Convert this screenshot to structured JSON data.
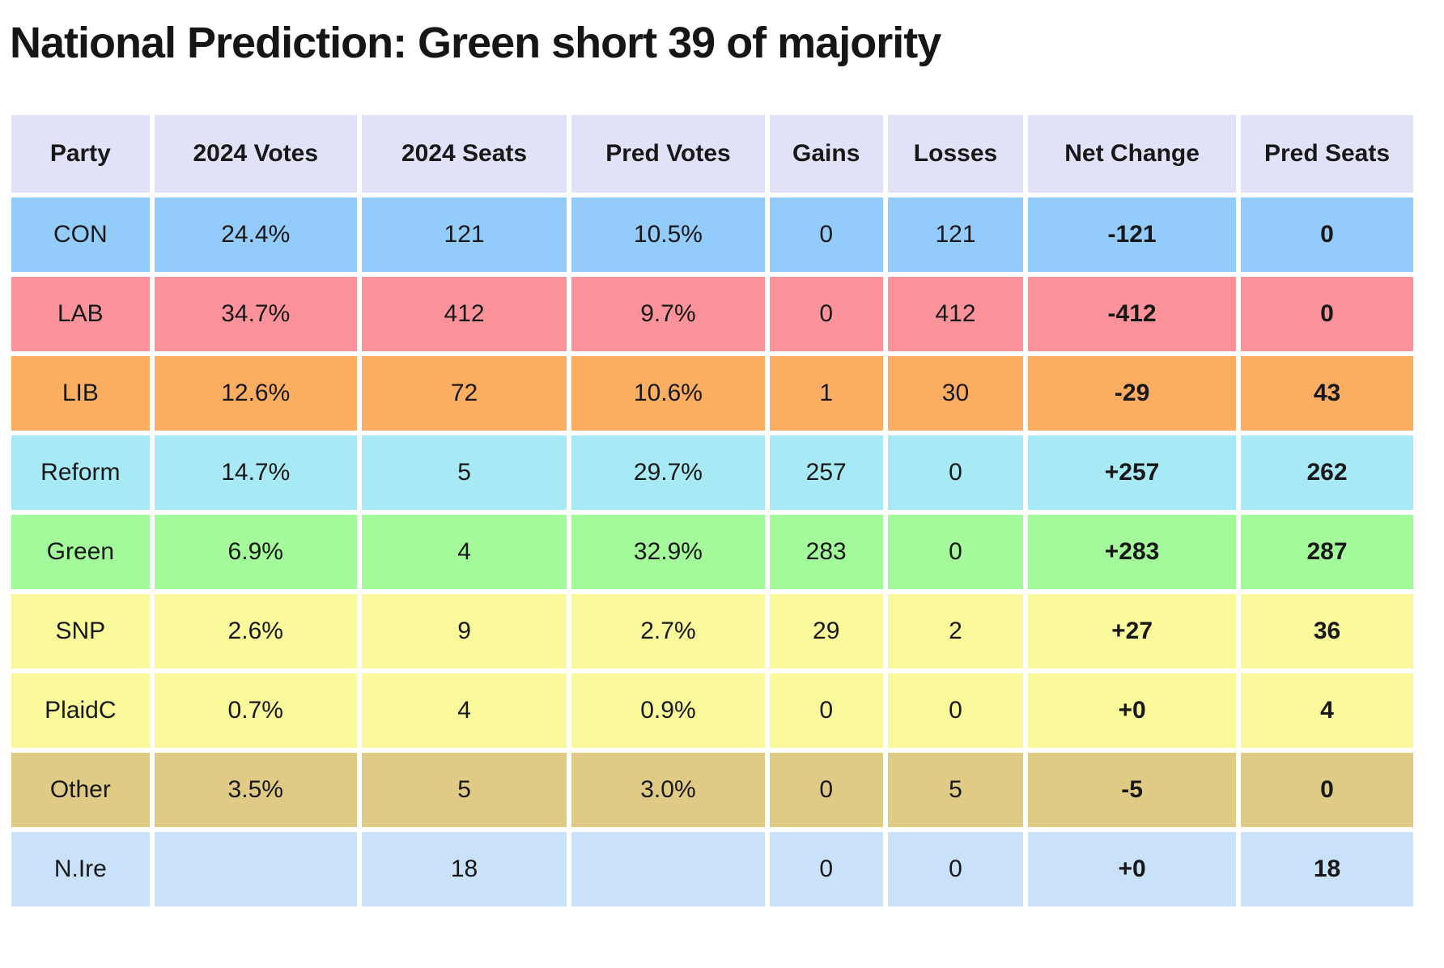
{
  "page": {
    "title": "National Prediction: Green short 39 of majority"
  },
  "colors": {
    "page_bg": "#ffffff",
    "header_bg": "#e1e1f8",
    "text": "#181818",
    "row_con": "#93cbfa",
    "row_lab": "#fc939a",
    "row_lib": "#fbae61",
    "row_reform": "#a7e9f4",
    "row_green": "#a4fa9a",
    "row_snp": "#f9f99c",
    "row_plaidc": "#f9f99c",
    "row_other": "#dfca86",
    "row_nire": "#cae1fa"
  },
  "table": {
    "columns": [
      "Party",
      "2024 Votes",
      "2024 Seats",
      "Pred Votes",
      "Gains",
      "Losses",
      "Net Change",
      "Pred Seats"
    ],
    "fields": [
      "party",
      "votes_2024",
      "seats_2024",
      "pred_votes",
      "gains",
      "losses",
      "net_change",
      "pred_seats"
    ],
    "bold_fields": [
      "net_change",
      "pred_seats"
    ],
    "rows": [
      {
        "party": "CON",
        "color": "#93cbfa",
        "votes_2024": "24.4%",
        "seats_2024": "121",
        "pred_votes": "10.5%",
        "gains": "0",
        "losses": "121",
        "net_change": "-121",
        "pred_seats": "0"
      },
      {
        "party": "LAB",
        "color": "#fc939a",
        "votes_2024": "34.7%",
        "seats_2024": "412",
        "pred_votes": "9.7%",
        "gains": "0",
        "losses": "412",
        "net_change": "-412",
        "pred_seats": "0"
      },
      {
        "party": "LIB",
        "color": "#fbae61",
        "votes_2024": "12.6%",
        "seats_2024": "72",
        "pred_votes": "10.6%",
        "gains": "1",
        "losses": "30",
        "net_change": "-29",
        "pred_seats": "43"
      },
      {
        "party": "Reform",
        "color": "#a7e9f4",
        "votes_2024": "14.7%",
        "seats_2024": "5",
        "pred_votes": "29.7%",
        "gains": "257",
        "losses": "0",
        "net_change": "+257",
        "pred_seats": "262"
      },
      {
        "party": "Green",
        "color": "#a4fa9a",
        "votes_2024": "6.9%",
        "seats_2024": "4",
        "pred_votes": "32.9%",
        "gains": "283",
        "losses": "0",
        "net_change": "+283",
        "pred_seats": "287"
      },
      {
        "party": "SNP",
        "color": "#f9f99c",
        "votes_2024": "2.6%",
        "seats_2024": "9",
        "pred_votes": "2.7%",
        "gains": "29",
        "losses": "2",
        "net_change": "+27",
        "pred_seats": "36"
      },
      {
        "party": "PlaidC",
        "color": "#f9f99c",
        "votes_2024": "0.7%",
        "seats_2024": "4",
        "pred_votes": "0.9%",
        "gains": "0",
        "losses": "0",
        "net_change": "+0",
        "pred_seats": "4"
      },
      {
        "party": "Other",
        "color": "#dfca86",
        "votes_2024": "3.5%",
        "seats_2024": "5",
        "pred_votes": "3.0%",
        "gains": "0",
        "losses": "5",
        "net_change": "-5",
        "pred_seats": "0"
      },
      {
        "party": "N.Ire",
        "color": "#cae1fa",
        "votes_2024": "",
        "seats_2024": "18",
        "pred_votes": "",
        "gains": "0",
        "losses": "0",
        "net_change": "+0",
        "pred_seats": "18"
      }
    ]
  }
}
